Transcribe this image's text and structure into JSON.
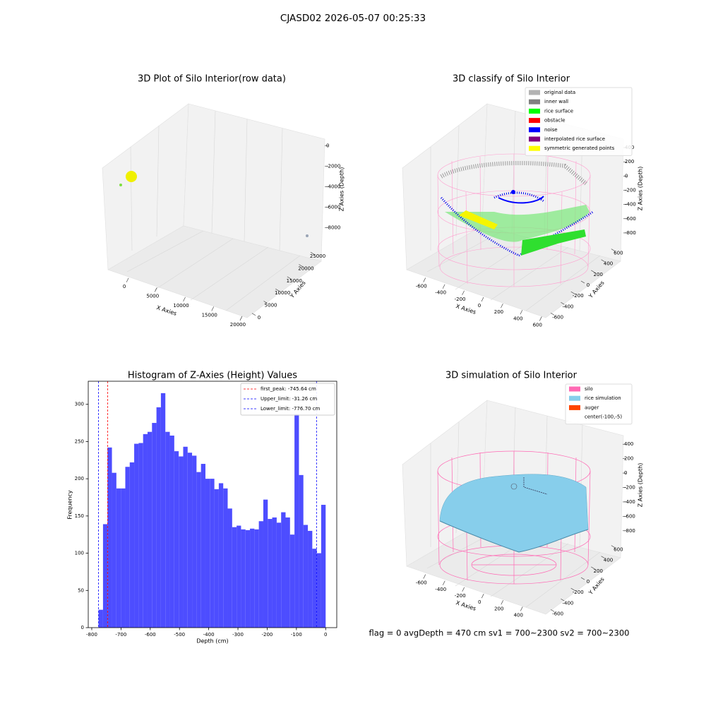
{
  "suptitle": "CJASD02 2026-05-07 00:25:33",
  "footer": "flag = 0     avgDepth = 470 cm  sv1 = 700~2300  sv2 = 700~2300",
  "chart_data": [
    {
      "type": "scatter3d",
      "title": "3D Plot of Silo Interior(row data)",
      "xlabel": "X Axies",
      "ylabel": "Y Axies",
      "zlabel": "Z Axies (Depth)",
      "xlim": [
        -2500,
        21500
      ],
      "xticks": [
        0,
        5000,
        10000,
        15000,
        20000
      ],
      "ylim": [
        -1500,
        26500
      ],
      "yticks": [
        0,
        5000,
        10000,
        15000,
        20000,
        25000
      ],
      "zlim": [
        -9500,
        500
      ],
      "zticks": [
        0,
        -2000,
        -4000,
        -6000,
        -8000
      ]
    },
    {
      "type": "scatter3d",
      "title": "3D classify of Silo Interior",
      "xlabel": "X Axies",
      "ylabel": "Y Axies",
      "zlabel": "Z Axies (Depth)",
      "xlim": [
        -700,
        700
      ],
      "xticks": [
        -600,
        -400,
        -200,
        0,
        200,
        400,
        600
      ],
      "ylim": [
        -700,
        700
      ],
      "yticks": [
        -600,
        -400,
        -200,
        0,
        200,
        400,
        600
      ],
      "zlim": [
        -900,
        450
      ],
      "zticks": [
        400,
        200,
        0,
        -200,
        -400,
        -600,
        -800
      ],
      "legend": [
        {
          "name": "original data",
          "color": "#b3b3b3"
        },
        {
          "name": "inner wall",
          "color": "#808080"
        },
        {
          "name": "rice surface",
          "color": "#00ff00"
        },
        {
          "name": "obstacle",
          "color": "#ff0000"
        },
        {
          "name": "noise",
          "color": "#0000ff"
        },
        {
          "name": "interpolated rice surface",
          "color": "#800080"
        },
        {
          "name": "symmetric generated points",
          "color": "#ffff00"
        }
      ]
    },
    {
      "type": "histogram",
      "title": "Histogram of Z-Axies (Height) Values",
      "xlabel": "Depth (cm)",
      "ylabel": "Frequency",
      "color": "#4d4dff",
      "bins": [
        -776.7,
        -761.5,
        -746.2,
        -731.0,
        -715.8,
        -700.6,
        -685.3,
        -670.1,
        -654.9,
        -639.6,
        -624.4,
        -609.2,
        -594.0,
        -578.7,
        -563.5,
        -548.3,
        -533.0,
        -517.8,
        -502.6,
        -487.3,
        -472.1,
        -456.9,
        -441.7,
        -426.4,
        -411.2,
        -396.0,
        -380.7,
        -365.5,
        -350.3,
        -335.1,
        -319.8,
        -304.6,
        -289.4,
        -274.1,
        -258.9,
        -243.7,
        -228.5,
        -213.2,
        -198.0,
        -182.8,
        -167.5,
        -152.3,
        -137.1,
        -121.9,
        -106.6,
        -91.4,
        -76.2,
        -60.9,
        -45.7,
        -30.5,
        -15.3,
        0.0
      ],
      "values": [
        24,
        139,
        242,
        208,
        187,
        187,
        216,
        222,
        247,
        248,
        260,
        263,
        275,
        296,
        315,
        263,
        258,
        237,
        230,
        243,
        235,
        231,
        209,
        220,
        200,
        200,
        186,
        194,
        187,
        160,
        135,
        137,
        132,
        131,
        133,
        132,
        143,
        172,
        146,
        148,
        141,
        155,
        148,
        125,
        287,
        205,
        138,
        130,
        106,
        100,
        165
      ],
      "xlim": [
        -812,
        38
      ],
      "xticks": [
        -800,
        -700,
        -600,
        -500,
        -400,
        -300,
        -200,
        -100,
        0
      ],
      "ylim": [
        0,
        331
      ],
      "yticks": [
        0,
        50,
        100,
        150,
        200,
        250,
        300
      ],
      "lines": [
        {
          "name": "first_peak: -745.64 cm",
          "value": -745.64,
          "color": "#ff0000"
        },
        {
          "name": "Upper_limit: -31.26 cm",
          "value": -31.26,
          "color": "#0000ff"
        },
        {
          "name": "Lower_limit: -776.70 cm",
          "value": -776.7,
          "color": "#0000ff"
        }
      ]
    },
    {
      "type": "surface3d",
      "title": "3D simulation of Silo Interior",
      "xlabel": "X Axies",
      "ylabel": "Y Axies",
      "zlabel": "Z Axies (Depth)",
      "xlim": [
        -700,
        500
      ],
      "xticks": [
        -600,
        -400,
        -200,
        0,
        200,
        400
      ],
      "ylim": [
        -700,
        700
      ],
      "yticks": [
        -600,
        -400,
        -200,
        0,
        200,
        400,
        600
      ],
      "zlim": [
        -900,
        500
      ],
      "zticks": [
        400,
        200,
        0,
        -200,
        -400,
        -600,
        -800
      ],
      "legend": [
        {
          "name": "silo",
          "color": "#ff69b4"
        },
        {
          "name": "rice simulation",
          "color": "#87ceeb"
        },
        {
          "name": "auger",
          "color": "#ff4500"
        },
        {
          "name": "center(-100,-5)",
          "color": null
        }
      ]
    }
  ]
}
